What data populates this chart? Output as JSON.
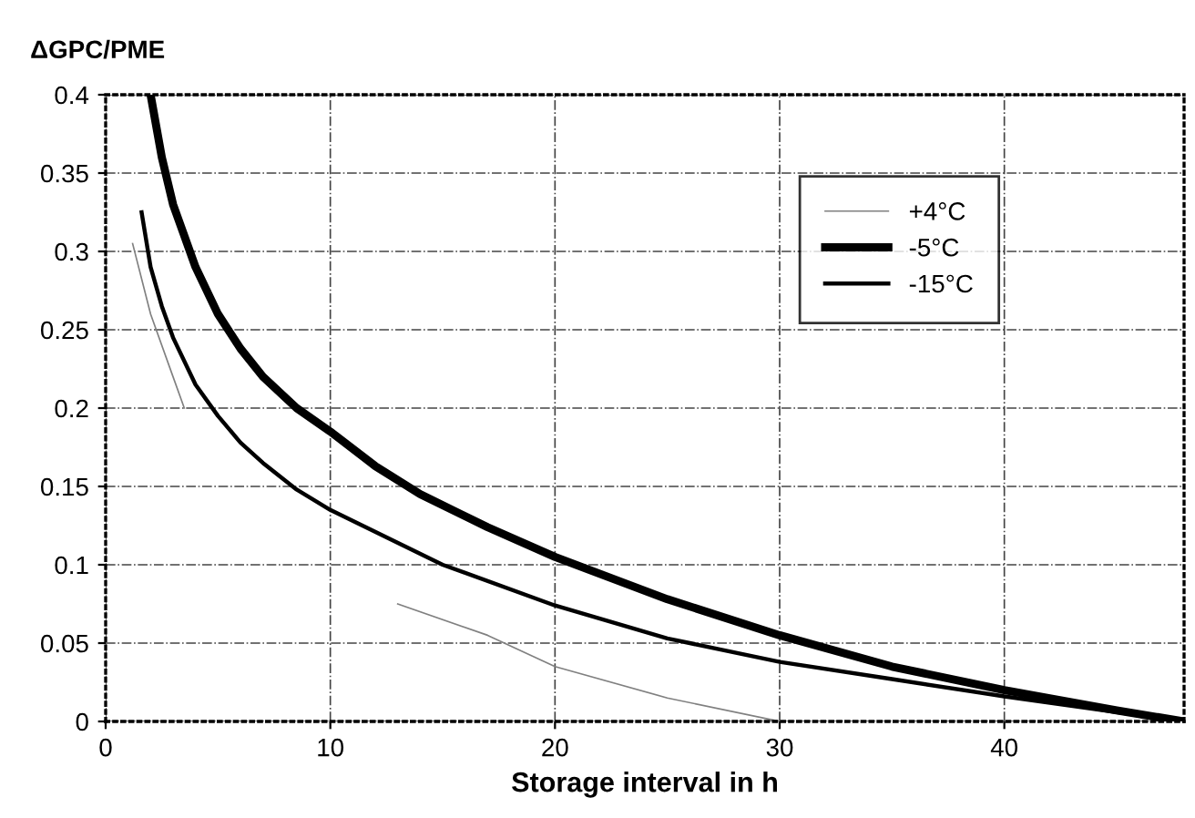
{
  "chart_data": {
    "type": "line",
    "ylabel": "ΔGPC/PME",
    "xlabel": "Storage interval in h",
    "xlim": [
      0,
      48
    ],
    "xticks": [
      0,
      10,
      20,
      30,
      40
    ],
    "ylim": [
      0,
      0.4
    ],
    "yticks": [
      0,
      0.05,
      0.1,
      0.15,
      0.2,
      0.25,
      0.3,
      0.35,
      0.4
    ],
    "grid": true,
    "legend": "top right",
    "series": [
      {
        "name": "+4°C",
        "color": "#808080",
        "x": [
          1.2,
          2,
          3,
          3.5,
          8,
          13,
          17,
          20,
          25,
          30
        ],
        "values": [
          0.305,
          0.26,
          0.22,
          0.2,
          null,
          0.075,
          0.055,
          0.035,
          0.015,
          0
        ]
      },
      {
        "name": "-5°C",
        "color": "#000000",
        "x": [
          2,
          2.5,
          3,
          4,
          5,
          6,
          7,
          8.5,
          10,
          12,
          14,
          17,
          20,
          25,
          30,
          35,
          40,
          45,
          48
        ],
        "values": [
          0.4,
          0.36,
          0.33,
          0.29,
          0.26,
          0.238,
          0.22,
          0.2,
          0.185,
          0.163,
          0.145,
          0.124,
          0.105,
          0.078,
          0.055,
          0.035,
          0.02,
          0.007,
          0
        ]
      },
      {
        "name": "-15°C",
        "color": "#000000",
        "x": [
          1.6,
          2,
          2.5,
          3,
          4,
          5,
          6,
          7,
          8.5,
          10,
          15,
          20,
          25,
          30,
          35,
          40,
          45,
          48
        ],
        "values": [
          0.325,
          0.29,
          0.265,
          0.245,
          0.215,
          0.195,
          0.178,
          0.165,
          0.148,
          0.135,
          0.1,
          0.074,
          0.053,
          0.038,
          0.027,
          0.016,
          0.006,
          0
        ]
      }
    ]
  }
}
